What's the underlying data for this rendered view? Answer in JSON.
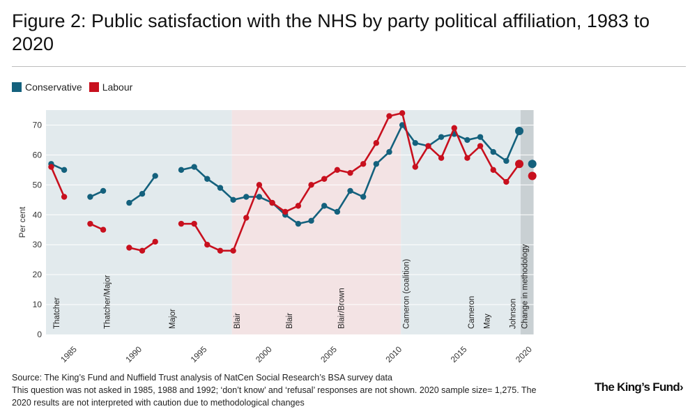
{
  "title": "Figure 2: Public satisfaction with the NHS by party political affiliation, 1983 to 2020",
  "source_line1": "Source: The King’s Fund and Nuffield Trust analysis of NatCen Social Research’s BSA survey data",
  "source_line2": "This question was not asked in 1985, 1988 and 1992; ‘don’t know’ and ‘refusal’ responses are not shown. 2020 sample size= 1,275. The",
  "source_line3": "2020 results are not  interpreted with caution due to methodological changes",
  "brand": "The King’s Fund›",
  "colors": {
    "conservative": "#14617d",
    "labour": "#c8101e",
    "band_blue": "#e2eaed",
    "band_pink": "#f3e3e4",
    "band_grey": "#c9d0d3",
    "grid": "#ffffff",
    "axis_text": "#333333"
  },
  "chart_data": {
    "type": "line",
    "ylabel": "Per cent",
    "ylim": [
      0,
      75
    ],
    "yticks": [
      0,
      10,
      20,
      30,
      40,
      50,
      60,
      70
    ],
    "xlim": [
      1982.6,
      2020.5
    ],
    "xticks": [
      1985,
      1990,
      1995,
      2000,
      2005,
      2010,
      2015,
      2020
    ],
    "legend": [
      {
        "name": "Conservative",
        "color": "#14617d"
      },
      {
        "name": "Labour",
        "color": "#c8101e"
      }
    ],
    "series": [
      {
        "name": "Conservative",
        "segments": [
          [
            [
              1983,
              57
            ],
            [
              1984,
              55
            ]
          ],
          [
            [
              1986,
              46
            ],
            [
              1987,
              48
            ]
          ],
          [
            [
              1989,
              44
            ],
            [
              1990,
              47
            ],
            [
              1991,
              53
            ]
          ],
          [
            [
              1993,
              55
            ],
            [
              1994,
              56
            ],
            [
              1995,
              52
            ],
            [
              1996,
              49
            ],
            [
              1997,
              45
            ],
            [
              1998,
              46
            ],
            [
              1999,
              46
            ],
            [
              2000,
              44
            ],
            [
              2001,
              40
            ],
            [
              2002,
              37
            ],
            [
              2003,
              38
            ],
            [
              2004,
              43
            ],
            [
              2005,
              41
            ],
            [
              2006,
              48
            ],
            [
              2007,
              46
            ],
            [
              2008,
              57
            ],
            [
              2009,
              61
            ],
            [
              2010,
              70
            ],
            [
              2011,
              64
            ],
            [
              2012,
              63
            ],
            [
              2013,
              66
            ],
            [
              2014,
              67
            ],
            [
              2015,
              65
            ],
            [
              2016,
              66
            ],
            [
              2017,
              61
            ],
            [
              2018,
              58
            ],
            [
              2019,
              68
            ]
          ]
        ],
        "highlight": [
          [
            2019,
            68
          ],
          [
            2020,
            57
          ]
        ]
      },
      {
        "name": "Labour",
        "segments": [
          [
            [
              1983,
              56
            ],
            [
              1984,
              46
            ]
          ],
          [
            [
              1986,
              37
            ],
            [
              1987,
              35
            ]
          ],
          [
            [
              1989,
              29
            ],
            [
              1990,
              28
            ],
            [
              1991,
              31
            ]
          ],
          [
            [
              1993,
              37
            ],
            [
              1994,
              37
            ],
            [
              1995,
              30
            ],
            [
              1996,
              28
            ],
            [
              1997,
              28
            ],
            [
              1998,
              39
            ],
            [
              1999,
              50
            ],
            [
              2000,
              44
            ],
            [
              2001,
              41
            ],
            [
              2002,
              43
            ],
            [
              2003,
              50
            ],
            [
              2004,
              52
            ],
            [
              2005,
              55
            ],
            [
              2006,
              54
            ],
            [
              2007,
              57
            ],
            [
              2008,
              64
            ],
            [
              2009,
              73
            ],
            [
              2010,
              74
            ],
            [
              2011,
              56
            ],
            [
              2012,
              63
            ],
            [
              2013,
              59
            ],
            [
              2014,
              69
            ],
            [
              2015,
              59
            ],
            [
              2016,
              63
            ],
            [
              2017,
              55
            ],
            [
              2018,
              51
            ],
            [
              2019,
              57
            ]
          ]
        ],
        "highlight": [
          [
            2019,
            57
          ],
          [
            2020,
            53
          ]
        ]
      }
    ],
    "bands": [
      {
        "from": 1982.6,
        "to": 1996.9,
        "tone": "blue"
      },
      {
        "from": 1996.9,
        "to": 2009.9,
        "tone": "pink"
      },
      {
        "from": 2009.9,
        "to": 2019.1,
        "tone": "blue"
      },
      {
        "from": 2019.1,
        "to": 2020.1,
        "tone": "grey"
      }
    ],
    "annotations": [
      {
        "x": 1983.4,
        "label": "Thatcher"
      },
      {
        "x": 1987.3,
        "label": "Thatcher/Major"
      },
      {
        "x": 1992.3,
        "label": "Major"
      },
      {
        "x": 1997.3,
        "label": "Blair"
      },
      {
        "x": 2001.3,
        "label": "Blair"
      },
      {
        "x": 2005.3,
        "label": "Blair/Brown"
      },
      {
        "x": 2010.3,
        "label": "Cameron (coalition)"
      },
      {
        "x": 2015.3,
        "label": "Cameron"
      },
      {
        "x": 2016.5,
        "label": "May"
      },
      {
        "x": 2018.5,
        "label": "Johnson"
      },
      {
        "x": 2019.4,
        "label": "Change in methodology"
      }
    ]
  }
}
